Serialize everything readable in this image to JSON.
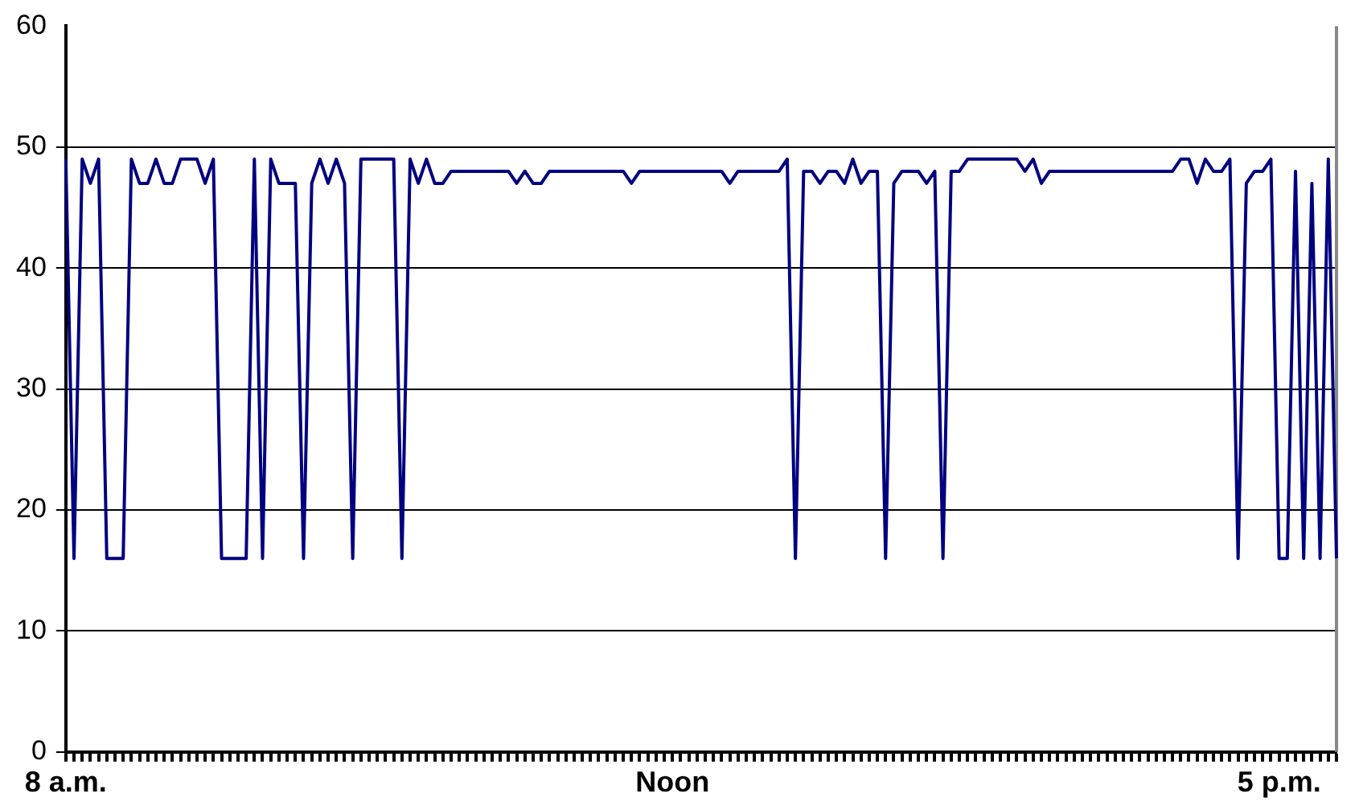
{
  "chart_data": {
    "type": "line",
    "color": "#000080",
    "marker": "none",
    "grid": "y",
    "ylim": [
      0,
      60
    ],
    "yticks": [
      0,
      10,
      20,
      30,
      40,
      50,
      60
    ],
    "categories": [
      "8 a.m.",
      null,
      null,
      null,
      null,
      null,
      null,
      null,
      null,
      null,
      null,
      null,
      null,
      null,
      null,
      null,
      null,
      null,
      null,
      null,
      null,
      null,
      null,
      null,
      null,
      null,
      null,
      null,
      null,
      null,
      null,
      null,
      null,
      null,
      null,
      null,
      null,
      null,
      null,
      null,
      null,
      null,
      null,
      null,
      null,
      null,
      null,
      null,
      null,
      null,
      null,
      null,
      null,
      null,
      null,
      null,
      null,
      null,
      null,
      null,
      null,
      null,
      null,
      null,
      null,
      null,
      null,
      null,
      null,
      null,
      null,
      null,
      null,
      null,
      "Noon",
      null,
      null,
      null,
      null,
      null,
      null,
      null,
      null,
      null,
      null,
      null,
      null,
      null,
      null,
      null,
      null,
      null,
      null,
      null,
      null,
      null,
      null,
      null,
      null,
      null,
      null,
      null,
      null,
      null,
      null,
      null,
      null,
      null,
      null,
      null,
      null,
      null,
      null,
      null,
      null,
      null,
      null,
      null,
      null,
      null,
      null,
      null,
      null,
      null,
      null,
      null,
      null,
      null,
      null,
      null,
      null,
      null,
      null,
      null,
      null,
      null,
      null,
      null,
      null,
      null,
      null,
      null,
      null,
      null,
      null,
      null,
      null,
      null,
      "5 p.m.",
      null,
      null,
      null,
      null,
      null,
      null,
      null
    ],
    "values": [
      49,
      16,
      49,
      47,
      49,
      16,
      16,
      16,
      49,
      47,
      47,
      49,
      47,
      47,
      49,
      49,
      49,
      47,
      49,
      16,
      16,
      16,
      16,
      49,
      16,
      49,
      47,
      47,
      47,
      16,
      47,
      49,
      47,
      49,
      47,
      16,
      49,
      49,
      49,
      49,
      49,
      16,
      49,
      47,
      49,
      47,
      47,
      48,
      48,
      48,
      48,
      48,
      48,
      48,
      48,
      47,
      48,
      47,
      47,
      48,
      48,
      48,
      48,
      48,
      48,
      48,
      48,
      48,
      48,
      47,
      48,
      48,
      48,
      48,
      48,
      48,
      48,
      48,
      48,
      48,
      48,
      47,
      48,
      48,
      48,
      48,
      48,
      48,
      49,
      16,
      48,
      48,
      47,
      48,
      48,
      47,
      49,
      47,
      48,
      48,
      16,
      47,
      48,
      48,
      48,
      47,
      48,
      16,
      48,
      48,
      49,
      49,
      49,
      49,
      49,
      49,
      49,
      48,
      49,
      47,
      48,
      48,
      48,
      48,
      48,
      48,
      48,
      48,
      48,
      48,
      48,
      48,
      48,
      48,
      48,
      48,
      49,
      49,
      47,
      49,
      48,
      48,
      49,
      16,
      47,
      48,
      48,
      49,
      16,
      16,
      48,
      16,
      47,
      16,
      49,
      16
    ]
  }
}
